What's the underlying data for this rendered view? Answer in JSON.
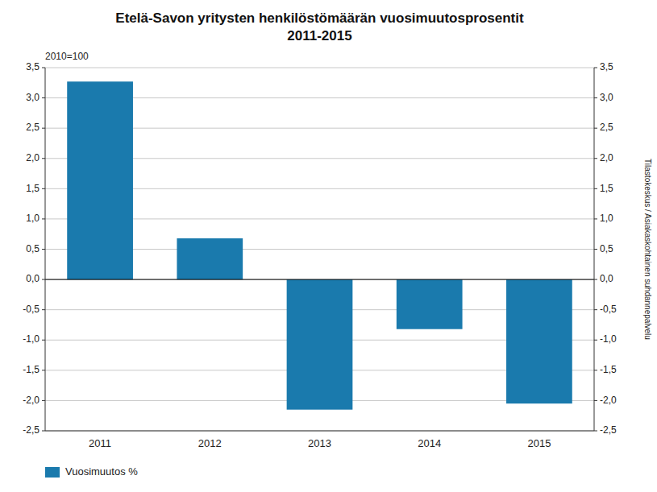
{
  "chart_data": {
    "type": "bar",
    "title": "Etelä-Savon yritysten henkilöstömäärän vuosimuutosprosentit\n2011-2015",
    "ylabel": "2010=100",
    "annotations": [
      "Tilastokeskus / Asiakaskohtainen suhdannepalvelu"
    ],
    "categories": [
      "2011",
      "2012",
      "2013",
      "2014",
      "2015"
    ],
    "series": [
      {
        "name": "Vuosimuutos %",
        "color": "#1a7aad",
        "values": [
          3.27,
          0.68,
          -2.15,
          -0.82,
          -2.05
        ]
      }
    ],
    "ylim": [
      -2.5,
      3.5
    ],
    "yticks": [
      {
        "value": -2.5,
        "label": "-2,5"
      },
      {
        "value": -2.0,
        "label": "-2,0"
      },
      {
        "value": -1.5,
        "label": "-1,5"
      },
      {
        "value": -1.0,
        "label": "-1,0"
      },
      {
        "value": -0.5,
        "label": "-0,5"
      },
      {
        "value": 0.0,
        "label": "0,0"
      },
      {
        "value": 0.5,
        "label": "0,5"
      },
      {
        "value": 1.0,
        "label": "1,0"
      },
      {
        "value": 1.5,
        "label": "1,5"
      },
      {
        "value": 2.0,
        "label": "2,0"
      },
      {
        "value": 2.5,
        "label": "2,5"
      },
      {
        "value": 3.0,
        "label": "3,0"
      },
      {
        "value": 3.5,
        "label": "3,5"
      }
    ],
    "y2lim": [
      -2.5,
      3.5
    ],
    "y2ticks": [
      {
        "value": -2.5,
        "label": "-2,5"
      },
      {
        "value": -2.0,
        "label": "-2,0"
      },
      {
        "value": -1.5,
        "label": "-1,5"
      },
      {
        "value": -1.0,
        "label": "-1,0"
      },
      {
        "value": -0.5,
        "label": "-0,5"
      },
      {
        "value": 0.0,
        "label": "0,0"
      },
      {
        "value": 0.5,
        "label": "0,5"
      },
      {
        "value": 1.0,
        "label": "1,0"
      },
      {
        "value": 1.5,
        "label": "1,5"
      },
      {
        "value": 2.0,
        "label": "2,0"
      },
      {
        "value": 2.5,
        "label": "2,5"
      },
      {
        "value": 3.0,
        "label": "3,0"
      },
      {
        "value": 3.5,
        "label": "3,5"
      }
    ],
    "grid": true,
    "legend": "lower left"
  }
}
